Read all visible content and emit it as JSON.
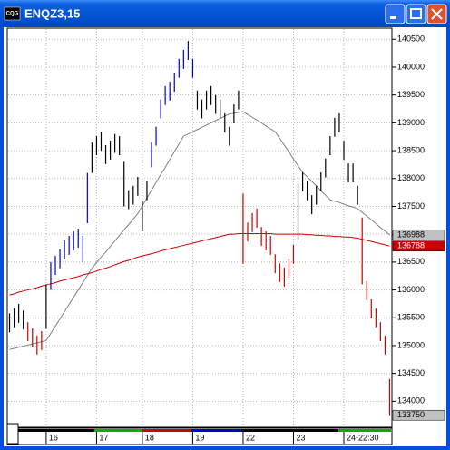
{
  "window": {
    "title": "ENQZ3,15",
    "icon": "CQG"
  },
  "chart_data": {
    "type": "ohlc",
    "categories": [
      null,
      null,
      null,
      null,
      null,
      null,
      null,
      null,
      "16",
      null,
      null,
      null,
      null,
      null,
      null,
      null,
      null,
      null,
      null,
      "17",
      null,
      null,
      null,
      null,
      null,
      null,
      null,
      null,
      null,
      "18",
      null,
      null,
      null,
      null,
      null,
      null,
      null,
      null,
      null,
      null,
      "19",
      null,
      null,
      null,
      null,
      null,
      null,
      null,
      null,
      null,
      null,
      "22",
      null,
      null,
      null,
      null,
      null,
      null,
      null,
      null,
      null,
      null,
      "23",
      null,
      null,
      null,
      null,
      null,
      null,
      null,
      null,
      null,
      null,
      "24-22:30",
      null,
      null,
      null,
      null,
      null,
      null,
      null,
      null,
      null,
      null
    ],
    "high": [
      135580,
      135670,
      135750,
      135630,
      135420,
      135310,
      135180,
      135260,
      136100,
      136500,
      136610,
      136730,
      136890,
      136970,
      137050,
      137100,
      136970,
      138100,
      138650,
      138760,
      138840,
      138600,
      138680,
      138800,
      138760,
      138300,
      137790,
      137870,
      138030,
      137600,
      137950,
      138650,
      138930,
      139420,
      139660,
      139740,
      139900,
      140150,
      140310,
      140470,
      140150,
      139580,
      139420,
      139580,
      139660,
      139500,
      139420,
      139170,
      138930,
      139330,
      139580,
      137730,
      137210,
      137380,
      137460,
      137130,
      137050,
      136970,
      136640,
      136480,
      136400,
      136560,
      136810,
      137900,
      138110,
      137950,
      137700,
      137870,
      138110,
      138360,
      138760,
      139090,
      139170,
      138680,
      138270,
      138270,
      137870,
      137300,
      136160,
      135830,
      135670,
      135420,
      135180,
      134400
    ],
    "low": [
      135240,
      135330,
      135410,
      135290,
      135080,
      134970,
      134840,
      134920,
      135300,
      136000,
      136270,
      136390,
      136550,
      136630,
      136710,
      136760,
      136500,
      137200,
      138100,
      138420,
      138500,
      138260,
      138340,
      138460,
      138420,
      137500,
      137450,
      137530,
      137690,
      137050,
      137610,
      138200,
      138590,
      139080,
      139320,
      139400,
      139560,
      139810,
      139970,
      140130,
      139810,
      139240,
      139080,
      139240,
      139320,
      139160,
      139080,
      138830,
      138590,
      138990,
      139240,
      136470,
      136870,
      137040,
      137120,
      136790,
      136710,
      136630,
      136300,
      136140,
      136060,
      136220,
      136470,
      136900,
      137770,
      137610,
      137360,
      137530,
      137770,
      138020,
      138420,
      138750,
      138830,
      138340,
      137930,
      137930,
      137530,
      136100,
      135820,
      135490,
      135330,
      135080,
      134840,
      133750
    ],
    "bar_colors": [
      "#000000",
      "#000000",
      "#000000",
      "#000000",
      "#cc0000",
      "#cc0000",
      "#cc0000",
      "#cc0000",
      "#000000",
      "#0000cc",
      "#0000cc",
      "#0000cc",
      "#0000cc",
      "#0000cc",
      "#0000cc",
      "#0000cc",
      "#0000cc",
      "#0000cc",
      "#000000",
      "#000000",
      "#000000",
      "#000000",
      "#000000",
      "#000000",
      "#000000",
      "#000000",
      "#000000",
      "#000000",
      "#000000",
      "#000000",
      "#000000",
      "#0000cc",
      "#0000cc",
      "#0000cc",
      "#0000cc",
      "#0000cc",
      "#0000cc",
      "#0000cc",
      "#0000cc",
      "#0000cc",
      "#0000cc",
      "#000000",
      "#000000",
      "#000000",
      "#000000",
      "#000000",
      "#000000",
      "#000000",
      "#000000",
      "#000000",
      "#000000",
      "#cc0000",
      "#cc0000",
      "#cc0000",
      "#cc0000",
      "#cc0000",
      "#cc0000",
      "#cc0000",
      "#cc0000",
      "#cc0000",
      "#cc0000",
      "#cc0000",
      "#cc0000",
      "#000000",
      "#000000",
      "#000000",
      "#000000",
      "#000000",
      "#000000",
      "#000000",
      "#000000",
      "#000000",
      "#000000",
      "#000000",
      "#000000",
      "#000000",
      "#000000",
      "#cc0000",
      "#cc0000",
      "#cc0000",
      "#cc0000",
      "#cc0000",
      "#cc0000",
      "#cc0000"
    ],
    "series": [
      {
        "color": "#808080",
        "values": [
          134930,
          134950,
          134970,
          134990,
          135010,
          135030,
          135050,
          135070,
          135090,
          135220,
          135350,
          135480,
          135610,
          135740,
          135870,
          136000,
          136130,
          136260,
          136390,
          136490,
          136590,
          136680,
          136780,
          136880,
          136980,
          137080,
          137170,
          137270,
          137370,
          137510,
          137650,
          137790,
          137930,
          138070,
          138200,
          138340,
          138480,
          138620,
          138760,
          138800,
          138840,
          138880,
          138920,
          138960,
          139000,
          139040,
          139080,
          139120,
          139160,
          139170,
          139190,
          139200,
          139150,
          139100,
          139050,
          139000,
          138940,
          138890,
          138840,
          138720,
          138600,
          138480,
          138350,
          138230,
          138110,
          138030,
          137950,
          137870,
          137780,
          137700,
          137620,
          137590,
          137570,
          137540,
          137510,
          137490,
          137460,
          137390,
          137330,
          137260,
          137190,
          137120,
          137060,
          136988
        ]
      },
      {
        "color": "#cc0000",
        "values": [
          135910,
          135930,
          135960,
          135980,
          136000,
          136020,
          136040,
          136070,
          136090,
          136110,
          136130,
          136160,
          136180,
          136200,
          136220,
          136240,
          136270,
          136290,
          136310,
          136340,
          136370,
          136390,
          136420,
          136450,
          136480,
          136510,
          136530,
          136560,
          136590,
          136610,
          136630,
          136650,
          136670,
          136700,
          136720,
          136740,
          136760,
          136780,
          136800,
          136820,
          136840,
          136860,
          136880,
          136900,
          136920,
          136940,
          136960,
          136980,
          137000,
          137000,
          137010,
          137010,
          137010,
          137010,
          137010,
          137010,
          137010,
          137010,
          137000,
          137000,
          137000,
          137000,
          137000,
          137000,
          137000,
          136990,
          136990,
          136980,
          136980,
          136970,
          136970,
          136960,
          136960,
          136950,
          136950,
          136940,
          136930,
          136910,
          136890,
          136870,
          136850,
          136830,
          136810,
          136788
        ]
      }
    ],
    "ylim": [
      133550,
      140700
    ],
    "yticks": [
      134000,
      134500,
      135000,
      135500,
      136000,
      136500,
      137000,
      137500,
      138000,
      138500,
      139000,
      139500,
      140000,
      140500
    ],
    "markers": [
      {
        "value": 136988,
        "color": "#c0c0c0",
        "text_color": "#000000"
      },
      {
        "value": 136788,
        "color": "#cc0000",
        "text_color": "#ffffff"
      },
      {
        "value": 133750,
        "color": "#c0c0c0",
        "text_color": "#000000"
      }
    ],
    "grid": true
  }
}
